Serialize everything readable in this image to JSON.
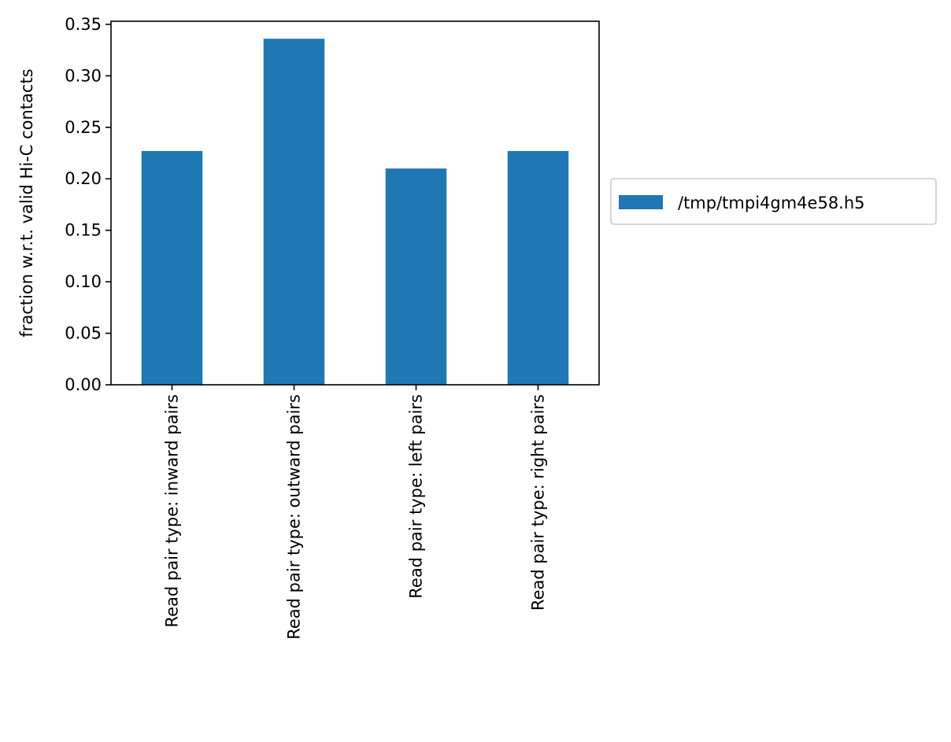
{
  "chart_data": {
    "type": "bar",
    "categories": [
      "Read pair type: inward pairs",
      "Read pair type: outward pairs",
      "Read pair type: left pairs",
      "Read pair type: right pairs"
    ],
    "series": [
      {
        "name": "/tmp/tmpi4gm4e58.h5",
        "values": [
          0.227,
          0.336,
          0.21,
          0.227
        ],
        "color": "#1f77b4"
      }
    ],
    "ylabel": "fraction w.r.t. valid Hi-C contacts",
    "xlabel": "",
    "ylim": [
      0,
      0.353
    ],
    "yticks": [
      0.0,
      0.05,
      0.1,
      0.15,
      0.2,
      0.25,
      0.3,
      0.35
    ],
    "ytick_labels": [
      "0.00",
      "0.05",
      "0.10",
      "0.15",
      "0.20",
      "0.25",
      "0.30",
      "0.35"
    ],
    "grid": false,
    "legend_position": "outside-right"
  }
}
